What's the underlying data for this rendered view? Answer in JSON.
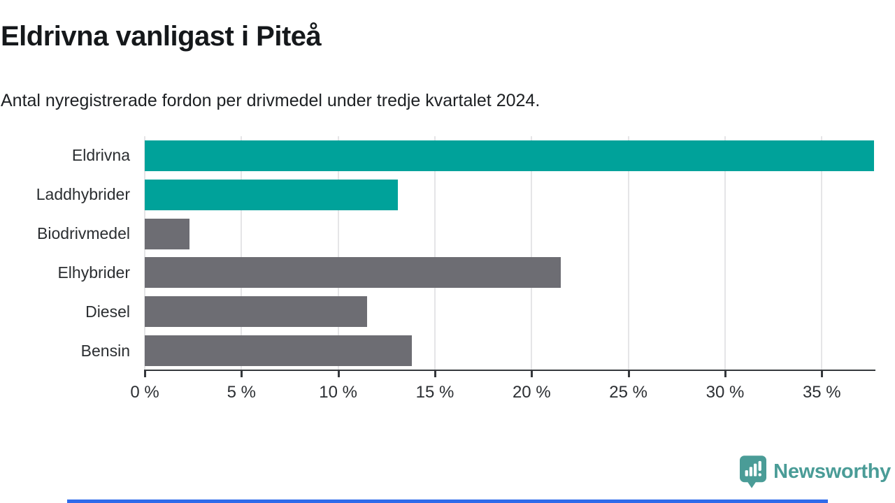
{
  "title": "Eldrivna vanligast i Piteå",
  "subtitle": "Antal nyregistrerade fordon per drivmedel under tredje kvartalet 2024.",
  "colors": {
    "teal_bar": "#00a29a",
    "gray_bar": "#6d6d73",
    "gridline": "#e5e5e7",
    "axis": "#35383c",
    "logo_teal": "#4a9c97",
    "bottom_bar_blue": "#2f6bea"
  },
  "chart_data": {
    "type": "bar",
    "orientation": "horizontal",
    "title": "Eldrivna vanligast i Piteå",
    "subtitle": "Antal nyregistrerade fordon per drivmedel under tredje kvartalet 2024.",
    "categories": [
      "Eldrivna",
      "Laddhybrider",
      "Biodrivmedel",
      "Elhybrider",
      "Diesel",
      "Bensin"
    ],
    "values": [
      37.7,
      13.1,
      2.3,
      21.5,
      11.5,
      13.8
    ],
    "unit": "%",
    "bar_color_keys": [
      "teal_bar",
      "teal_bar",
      "gray_bar",
      "gray_bar",
      "gray_bar",
      "gray_bar"
    ],
    "x_tick_values": [
      0,
      5,
      10,
      15,
      20,
      25,
      30,
      35
    ],
    "x_tick_labels": [
      "0 %",
      "5 %",
      "10 %",
      "15 %",
      "20 %",
      "25 %",
      "30 %",
      "35 %"
    ],
    "xlim": [
      0,
      37.7
    ],
    "grid": true,
    "legend": false
  },
  "footer": {
    "brand": "Newsworthy"
  }
}
